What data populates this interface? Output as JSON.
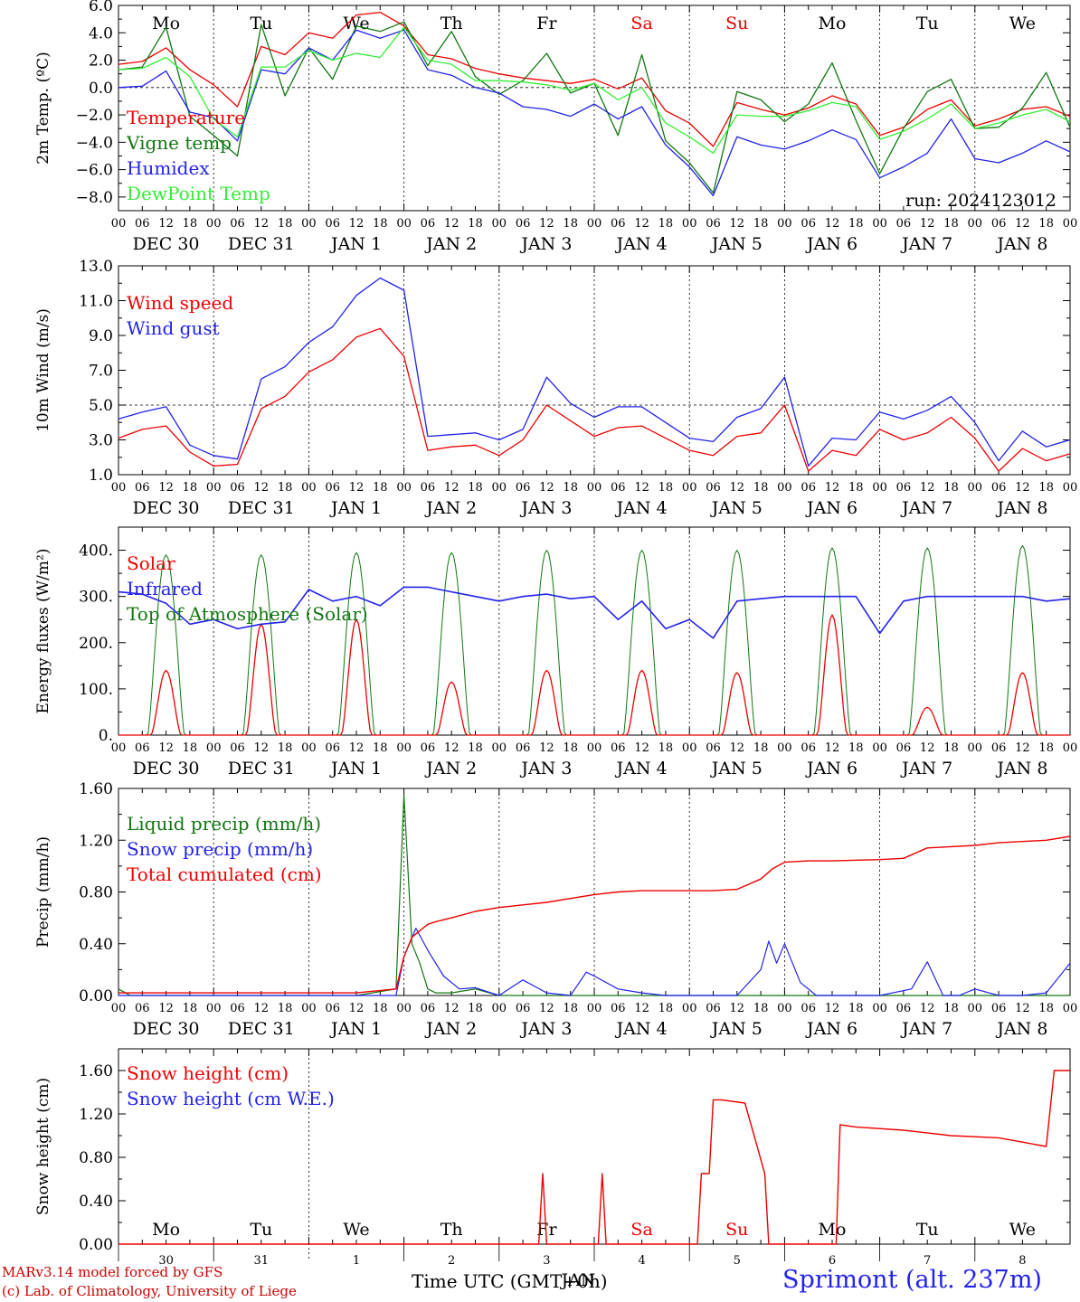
{
  "run_label": "run: 2024123012",
  "footer": {
    "credit_line1": "MARv3.14 model forced by GFS",
    "credit_line2": "(c) Lab. of Climatology, University of Liege",
    "xaxis_title": "Time UTC (GMT+0h)",
    "month_label": "JAN",
    "station": "Sprimont (alt. 237m)"
  },
  "colors": {
    "red": "#ee0000",
    "green": "#117711",
    "blue": "#2222ee",
    "lightgreen": "#33ee33",
    "weekend": "#ee0000"
  },
  "hour_ticks": [
    "00",
    "06",
    "12",
    "18"
  ],
  "end_tick": "00",
  "date_labels": [
    "DEC 30",
    "DEC 31",
    "JAN  1",
    "JAN  2",
    "JAN  3",
    "JAN  4",
    "JAN  5",
    "JAN  6",
    "JAN  7",
    "JAN  8"
  ],
  "weekdays": [
    {
      "label": "Mo",
      "weekend": false
    },
    {
      "label": "Tu",
      "weekend": false
    },
    {
      "label": "We",
      "weekend": false
    },
    {
      "label": "Th",
      "weekend": false
    },
    {
      "label": "Fr",
      "weekend": false
    },
    {
      "label": "Sa",
      "weekend": true
    },
    {
      "label": "Su",
      "weekend": true
    },
    {
      "label": "Mo",
      "weekend": false
    },
    {
      "label": "Tu",
      "weekend": false
    },
    {
      "label": "We",
      "weekend": false
    }
  ],
  "day_numbers": [
    "30",
    "31",
    "1",
    "2",
    "3",
    "4",
    "5",
    "6",
    "7",
    "8"
  ],
  "chart_data": [
    {
      "type": "line",
      "ylabel": "2m Temp. (ºC)",
      "ylim": [
        -9,
        6
      ],
      "yticks": [
        "6.0",
        "4.0",
        "2.0",
        "0.0",
        "−2.0",
        "−4.0",
        "−6.0",
        "−8.0"
      ],
      "ytick_values": [
        6,
        4,
        2,
        0,
        -2,
        -4,
        -6,
        -8
      ],
      "ref_line": 0,
      "x_hours": [
        0,
        6,
        12,
        18,
        24,
        30,
        36,
        42,
        48,
        54,
        60,
        66,
        72,
        78,
        84,
        90,
        96,
        102,
        108,
        114,
        120,
        126,
        132,
        138,
        144,
        150,
        156,
        162,
        168,
        174,
        180,
        186,
        192,
        198,
        204,
        210,
        216,
        222,
        228,
        234,
        240
      ],
      "series": [
        {
          "name": "Temperature",
          "color": "red",
          "values": [
            1.7,
            1.9,
            2.9,
            1.3,
            0.2,
            -1.4,
            3.0,
            2.4,
            4.0,
            3.6,
            5.3,
            5.5,
            4.5,
            2.4,
            2.1,
            1.4,
            1.0,
            0.7,
            0.5,
            0.3,
            0.6,
            -0.1,
            0.7,
            -1.7,
            -2.6,
            -4.3,
            -1.1,
            -1.6,
            -2.0,
            -1.5,
            -0.6,
            -1.2,
            -3.5,
            -2.9,
            -1.6,
            -0.9,
            -2.8,
            -2.3,
            -1.6,
            -1.4,
            -2.1
          ]
        },
        {
          "name": "Vigne temp",
          "color": "green",
          "values": [
            1.3,
            1.5,
            4.4,
            -2.1,
            -3.5,
            -5.0,
            4.6,
            -0.6,
            2.9,
            0.6,
            4.5,
            4.1,
            4.8,
            1.6,
            4.1,
            0.8,
            -0.5,
            0.5,
            2.5,
            -0.4,
            0.3,
            -3.5,
            2.4,
            -3.9,
            -5.5,
            -7.7,
            -0.3,
            -0.9,
            -2.5,
            -1.2,
            1.8,
            -2.4,
            -6.3,
            -3.0,
            -0.3,
            0.6,
            -3.0,
            -2.9,
            -1.5,
            1.1,
            -2.9
          ]
        },
        {
          "name": "Humidex",
          "color": "blue",
          "values": [
            0.0,
            0.1,
            1.2,
            -1.8,
            -2.2,
            -3.9,
            1.3,
            1.0,
            2.9,
            2.0,
            4.2,
            3.6,
            4.2,
            1.3,
            0.9,
            0.0,
            -0.4,
            -1.4,
            -1.6,
            -2.1,
            -1.2,
            -2.3,
            -1.4,
            -4.2,
            -5.8,
            -7.9,
            -3.6,
            -4.2,
            -4.5,
            -3.9,
            -3.1,
            -3.8,
            -6.6,
            -5.8,
            -4.8,
            -2.3,
            -5.2,
            -5.5,
            -4.8,
            -3.9,
            -4.7
          ]
        },
        {
          "name": "DewPoint Temp",
          "color": "lightgreen",
          "values": [
            1.3,
            1.4,
            2.2,
            0.8,
            -2.3,
            -3.6,
            1.5,
            1.5,
            2.7,
            2.0,
            2.5,
            2.2,
            4.4,
            2.0,
            1.7,
            0.5,
            0.5,
            0.4,
            0.2,
            -0.2,
            0.3,
            -0.9,
            0.0,
            -2.6,
            -3.6,
            -4.8,
            -2.0,
            -2.1,
            -2.1,
            -1.7,
            -1.1,
            -1.4,
            -3.8,
            -3.2,
            -2.3,
            -1.2,
            -3.0,
            -2.6,
            -2.0,
            -1.6,
            -2.5
          ]
        }
      ]
    },
    {
      "type": "line",
      "ylabel": "10m Wind (m/s)",
      "ylim": [
        1,
        13
      ],
      "yticks": [
        "13.0",
        "11.0",
        "9.0",
        "7.0",
        "5.0",
        "3.0",
        "1.0"
      ],
      "ytick_values": [
        13,
        11,
        9,
        7,
        5,
        3,
        1
      ],
      "ref_line": 5,
      "x_hours": [
        0,
        6,
        12,
        18,
        24,
        30,
        36,
        42,
        48,
        54,
        60,
        66,
        72,
        78,
        84,
        90,
        96,
        102,
        108,
        114,
        120,
        126,
        132,
        138,
        144,
        150,
        156,
        162,
        168,
        174,
        180,
        186,
        192,
        198,
        204,
        210,
        216,
        222,
        228,
        234,
        240
      ],
      "series": [
        {
          "name": "Wind speed",
          "color": "red",
          "values": [
            3.1,
            3.6,
            3.8,
            2.3,
            1.5,
            1.6,
            4.8,
            5.5,
            6.9,
            7.6,
            8.9,
            9.4,
            7.8,
            2.4,
            2.6,
            2.7,
            2.1,
            3.0,
            5.0,
            4.1,
            3.2,
            3.7,
            3.8,
            3.1,
            2.4,
            2.1,
            3.2,
            3.4,
            5.0,
            1.2,
            2.4,
            2.1,
            3.6,
            3.0,
            3.4,
            4.3,
            3.1,
            1.2,
            2.5,
            1.8,
            2.2
          ]
        },
        {
          "name": "Wind gust",
          "color": "blue",
          "values": [
            4.2,
            4.6,
            4.9,
            2.7,
            2.1,
            1.9,
            6.5,
            7.2,
            8.6,
            9.5,
            11.3,
            12.3,
            11.6,
            3.2,
            3.3,
            3.4,
            3.0,
            3.6,
            6.6,
            5.1,
            4.3,
            4.9,
            4.9,
            4.0,
            3.1,
            2.9,
            4.3,
            4.8,
            6.6,
            1.5,
            3.1,
            3.0,
            4.6,
            4.2,
            4.7,
            5.5,
            4.0,
            1.8,
            3.5,
            2.6,
            3.0
          ]
        }
      ]
    },
    {
      "type": "line",
      "ylabel": "Energy fluxes (W/m²)",
      "ylim": [
        0,
        450
      ],
      "yticks": [
        "400.",
        "300.",
        "200.",
        "100.",
        "0."
      ],
      "ytick_values": [
        400,
        300,
        200,
        100,
        0
      ],
      "ref_line": null,
      "days": 10,
      "solar_peaks": [
        140,
        240,
        250,
        115,
        140,
        140,
        135,
        260,
        60,
        135
      ],
      "toa_peaks": [
        390,
        390,
        395,
        395,
        400,
        400,
        400,
        405,
        405,
        410
      ],
      "infrared": {
        "x_hours": [
          0,
          6,
          12,
          18,
          24,
          30,
          36,
          42,
          48,
          54,
          60,
          66,
          72,
          78,
          84,
          90,
          96,
          102,
          108,
          114,
          120,
          126,
          132,
          138,
          144,
          150,
          156,
          162,
          168,
          174,
          180,
          186,
          192,
          198,
          204,
          210,
          216,
          222,
          228,
          234,
          240
        ],
        "values": [
          310,
          305,
          285,
          240,
          250,
          230,
          240,
          245,
          315,
          290,
          300,
          280,
          320,
          320,
          310,
          300,
          290,
          300,
          305,
          295,
          300,
          250,
          290,
          230,
          250,
          210,
          290,
          295,
          300,
          300,
          300,
          300,
          220,
          290,
          300,
          300,
          300,
          300,
          300,
          290,
          295
        ]
      },
      "series": [
        {
          "name": "Solar",
          "color": "red"
        },
        {
          "name": "Infrared",
          "color": "blue"
        },
        {
          "name": "Top of Atmosphere (Solar)",
          "color": "green"
        }
      ]
    },
    {
      "type": "line",
      "ylabel": "Precip (mm/h)",
      "ylim": [
        0,
        1.6
      ],
      "yticks": [
        "1.60",
        "1.20",
        "0.80",
        "0.40",
        "0.00"
      ],
      "ytick_values": [
        1.6,
        1.2,
        0.8,
        0.4,
        0.0
      ],
      "ref_line": null,
      "liquid": {
        "x_hours": [
          0,
          3,
          60,
          70,
          72,
          74,
          76,
          78,
          80,
          84,
          90,
          96,
          108,
          120,
          132,
          144,
          156,
          168,
          180,
          192,
          204,
          216,
          228,
          240
        ],
        "values": [
          0.05,
          0.0,
          0.0,
          0.05,
          1.55,
          0.4,
          0.25,
          0.05,
          0.02,
          0.02,
          0.05,
          0.0,
          0.0,
          0.0,
          0.0,
          0.0,
          0.0,
          0.0,
          0.0,
          0.0,
          0.0,
          0.0,
          0.0,
          0.0
        ]
      },
      "snow": {
        "x_hours": [
          0,
          60,
          70,
          72,
          75,
          78,
          82,
          86,
          90,
          96,
          102,
          108,
          114,
          118,
          120,
          126,
          132,
          138,
          144,
          150,
          156,
          162,
          164,
          166,
          168,
          172,
          176,
          180,
          192,
          200,
          204,
          208,
          212,
          216,
          222,
          228,
          234,
          240
        ],
        "values": [
          0.0,
          0.0,
          0.0,
          0.3,
          0.52,
          0.35,
          0.15,
          0.05,
          0.06,
          0.0,
          0.12,
          0.02,
          0.0,
          0.18,
          0.15,
          0.05,
          0.02,
          0.0,
          0.0,
          0.0,
          0.0,
          0.2,
          0.42,
          0.25,
          0.4,
          0.1,
          0.0,
          0.0,
          0.0,
          0.05,
          0.26,
          0.0,
          0.0,
          0.05,
          0.0,
          0.0,
          0.02,
          0.25
        ]
      },
      "total": {
        "x_hours": [
          0,
          60,
          70,
          72,
          74,
          76,
          78,
          80,
          84,
          90,
          96,
          102,
          108,
          114,
          120,
          126,
          132,
          138,
          144,
          150,
          156,
          162,
          165,
          168,
          174,
          180,
          192,
          198,
          204,
          210,
          216,
          222,
          228,
          234,
          240
        ],
        "values": [
          0.02,
          0.02,
          0.05,
          0.3,
          0.45,
          0.5,
          0.55,
          0.57,
          0.6,
          0.65,
          0.68,
          0.7,
          0.72,
          0.75,
          0.78,
          0.8,
          0.81,
          0.81,
          0.81,
          0.81,
          0.82,
          0.9,
          0.98,
          1.03,
          1.04,
          1.04,
          1.05,
          1.06,
          1.14,
          1.15,
          1.16,
          1.18,
          1.19,
          1.2,
          1.23
        ]
      },
      "series": [
        {
          "name": "Liquid precip (mm/h)",
          "color": "green"
        },
        {
          "name": "Snow precip (mm/h)",
          "color": "blue"
        },
        {
          "name": "Total cumulated (cm)",
          "color": "red"
        }
      ]
    },
    {
      "type": "line",
      "ylabel": "Snow height (cm)",
      "ylim": [
        0,
        1.8
      ],
      "yticks": [
        "1.60",
        "1.20",
        "0.80",
        "0.40",
        "0.00"
      ],
      "ytick_values": [
        1.6,
        1.2,
        0.8,
        0.4,
        0.0
      ],
      "ref_line": null,
      "snow_height": {
        "x_hours": [
          0,
          106,
          107,
          108,
          121,
          122,
          123,
          146,
          147,
          149,
          150,
          152,
          158,
          163,
          164,
          166,
          176,
          181,
          182,
          186,
          198,
          210,
          222,
          228,
          234,
          236,
          240
        ],
        "values": [
          0,
          0,
          0.65,
          0,
          0,
          0.65,
          0,
          0,
          0.65,
          0.65,
          1.33,
          1.33,
          1.3,
          0.65,
          0,
          0,
          0,
          0,
          1.1,
          1.08,
          1.05,
          1.0,
          0.98,
          0.94,
          0.9,
          1.6,
          1.6
        ]
      },
      "series": [
        {
          "name": "Snow height (cm)",
          "color": "red"
        },
        {
          "name": "Snow height (cm W.E.)",
          "color": "blue"
        }
      ]
    }
  ]
}
